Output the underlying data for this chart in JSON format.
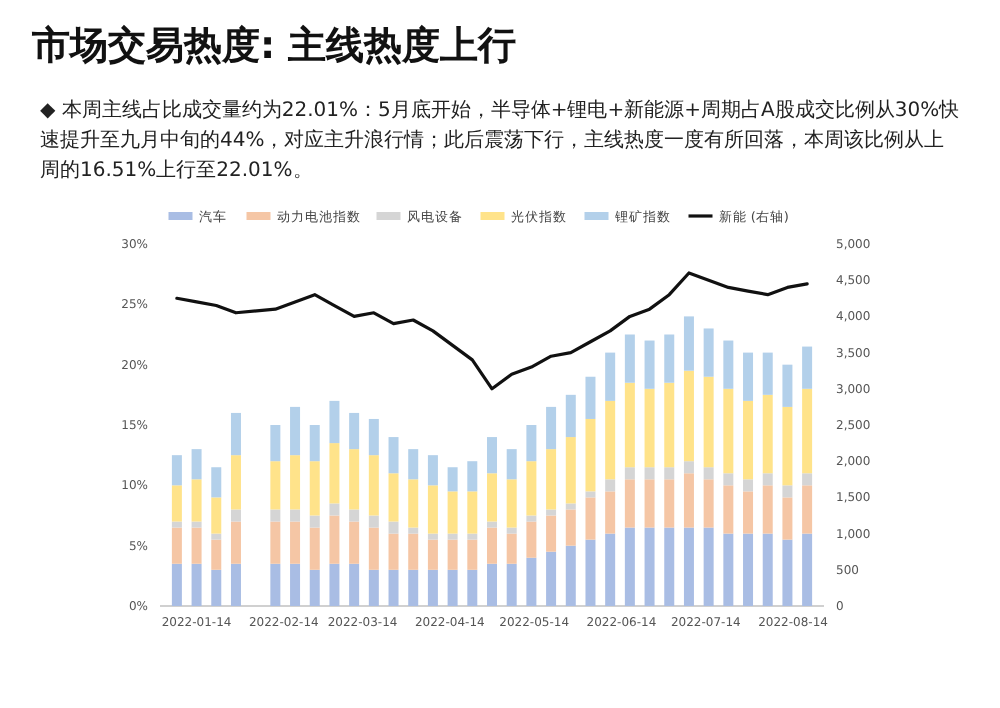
{
  "chart_data": {
    "type": "bar",
    "stacked": true,
    "title": "市场交易热度: 主线热度上行",
    "subtitle": "◆ 本周主线占比成交量约为22.01%：5月底开始，半导体+锂电+新能源+周期占A股成交比例从30%快速提升至九月中旬的44%，对应主升浪行情；此后震荡下行，主线热度一度有所回落，本周该比例从上周的16.51%上行至22.01%。",
    "legend": "top",
    "x": [
      "2022-01-07",
      "2022-01-14",
      "2022-01-21",
      "2022-01-28",
      "2022-02-11",
      "2022-02-18",
      "2022-02-25",
      "2022-03-04",
      "2022-03-11",
      "2022-03-18",
      "2022-03-25",
      "2022-04-01",
      "2022-04-08",
      "2022-04-15",
      "2022-04-22",
      "2022-04-29",
      "2022-05-06",
      "2022-05-13",
      "2022-05-20",
      "2022-05-27",
      "2022-06-03",
      "2022-06-10",
      "2022-06-17",
      "2022-06-24",
      "2022-07-01",
      "2022-07-08",
      "2022-07-15",
      "2022-07-22",
      "2022-07-29",
      "2022-08-05",
      "2022-08-12",
      "2022-08-19"
    ],
    "xlim": [
      "2022-01-01",
      "2022-08-25"
    ],
    "xticks": [
      "2022-01-14",
      "2022-02-14",
      "2022-03-14",
      "2022-04-14",
      "2022-05-14",
      "2022-06-14",
      "2022-07-14",
      "2022-08-14"
    ],
    "ylim": [
      0,
      30
    ],
    "yticks": [
      {
        "value": 0,
        "label": "0%"
      },
      {
        "value": 5,
        "label": "5%"
      },
      {
        "value": 10,
        "label": "10%"
      },
      {
        "value": 15,
        "label": "15%"
      },
      {
        "value": 20,
        "label": "20%"
      },
      {
        "value": 25,
        "label": "25%"
      },
      {
        "value": 30,
        "label": "30%"
      }
    ],
    "y2lim": [
      0,
      5000
    ],
    "y2ticks": [
      {
        "value": 0,
        "label": "0"
      },
      {
        "value": 500,
        "label": "500"
      },
      {
        "value": 1000,
        "label": "1,000"
      },
      {
        "value": 1500,
        "label": "1,500"
      },
      {
        "value": 2000,
        "label": "2,000"
      },
      {
        "value": 2500,
        "label": "2,500"
      },
      {
        "value": 3000,
        "label": "3,000"
      },
      {
        "value": 3500,
        "label": "3,500"
      },
      {
        "value": 4000,
        "label": "4,000"
      },
      {
        "value": 4500,
        "label": "4,500"
      },
      {
        "value": 5000,
        "label": "5,000"
      }
    ],
    "series": [
      {
        "name": "汽车",
        "color": "#a9bde4",
        "values": [
          3.5,
          3.5,
          3,
          3.5,
          3.5,
          3.5,
          3,
          3.5,
          3.5,
          3,
          3,
          3,
          3,
          3,
          3,
          3.5,
          3.5,
          4,
          4.5,
          5,
          5.5,
          6,
          6.5,
          6.5,
          6.5,
          6.5,
          6.5,
          6,
          6,
          6,
          5.5,
          6
        ]
      },
      {
        "name": "动力电池指数",
        "color": "#f5c6a5",
        "values": [
          3,
          3,
          2.5,
          3.5,
          3.5,
          3.5,
          3.5,
          4,
          3.5,
          3.5,
          3,
          3,
          2.5,
          2.5,
          2.5,
          3,
          2.5,
          3,
          3,
          3,
          3.5,
          3.5,
          4,
          4,
          4,
          4.5,
          4,
          4,
          3.5,
          4,
          3.5,
          4
        ]
      },
      {
        "name": "风电设备",
        "color": "#d5d5d5",
        "values": [
          0.5,
          0.5,
          0.5,
          1,
          1,
          1,
          1,
          1,
          1,
          1,
          1,
          0.5,
          0.5,
          0.5,
          0.5,
          0.5,
          0.5,
          0.5,
          0.5,
          0.5,
          0.5,
          1,
          1,
          1,
          1,
          1,
          1,
          1,
          1,
          1,
          1,
          1
        ]
      },
      {
        "name": "光伏指数",
        "color": "#ffe38a",
        "values": [
          3,
          3.5,
          3,
          4.5,
          4,
          4.5,
          4.5,
          5,
          5,
          5,
          4,
          4,
          4,
          3.5,
          3.5,
          4,
          4,
          4.5,
          5,
          5.5,
          6,
          6.5,
          7,
          6.5,
          7,
          7.5,
          7.5,
          7,
          6.5,
          6.5,
          6.5,
          7
        ]
      },
      {
        "name": "锂矿指数",
        "color": "#b3d0ea",
        "values": [
          2.5,
          2.5,
          2.5,
          3.5,
          3,
          4,
          3,
          3.5,
          3,
          3,
          3,
          2.5,
          2.5,
          2,
          2.5,
          3,
          2.5,
          3,
          3.5,
          3.5,
          3.5,
          4,
          4,
          4,
          4,
          4.5,
          4,
          4,
          4,
          3.5,
          3.5,
          3.5
        ]
      },
      {
        "name": "新能 (右轴)",
        "type": "line",
        "axis": "y2",
        "color": "#111111",
        "values": [
          4250,
          4200,
          4150,
          4050,
          4100,
          4200,
          4300,
          4150,
          4000,
          4050,
          3900,
          3950,
          3800,
          3600,
          3400,
          3000,
          3200,
          3300,
          3450,
          3500,
          3650,
          3800,
          4000,
          4100,
          4300,
          4600,
          4500,
          4400,
          4350,
          4300,
          4400,
          4450
        ]
      }
    ]
  }
}
